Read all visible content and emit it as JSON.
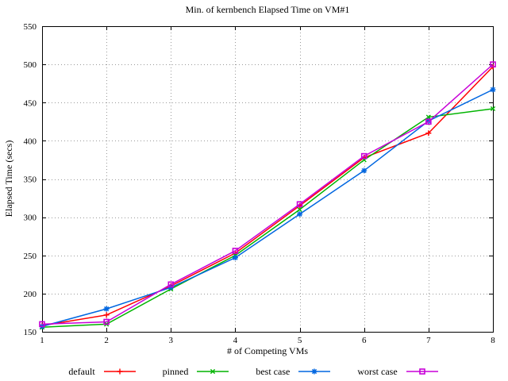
{
  "chart_data": {
    "type": "line",
    "title": "Min. of kernbench Elapsed Time on VM#1",
    "xlabel": "# of Competing VMs",
    "ylabel": "Elapsed Time (secs)",
    "x": [
      1,
      2,
      3,
      4,
      5,
      6,
      7,
      8
    ],
    "xlim": [
      1,
      8
    ],
    "ylim": [
      150,
      550
    ],
    "ytick_step": 50,
    "xticks": [
      1,
      2,
      3,
      4,
      5,
      6,
      7,
      8
    ],
    "yticks": [
      150,
      200,
      250,
      300,
      350,
      400,
      450,
      500,
      550
    ],
    "grid": true,
    "grid_style": "dotted",
    "grid_color": "#9a9a9a",
    "border_color": "#000000",
    "background_color": "#ffffff",
    "legend_position": "bottom-center",
    "series": [
      {
        "name": "default",
        "color": "#ff0000",
        "marker": "plus",
        "values": [
          158,
          172,
          210,
          253,
          315,
          378,
          410,
          497
        ]
      },
      {
        "name": "pinned",
        "color": "#00b400",
        "marker": "cross",
        "values": [
          156,
          160,
          206,
          250,
          310,
          375,
          431,
          442
        ]
      },
      {
        "name": "best case",
        "color": "#0066e0",
        "marker": "asterisk",
        "values": [
          157,
          180,
          208,
          247,
          304,
          361,
          426,
          467
        ]
      },
      {
        "name": "worst case",
        "color": "#c800d8",
        "marker": "square",
        "values": [
          160,
          163,
          212,
          256,
          317,
          380,
          425,
          500
        ]
      }
    ]
  }
}
